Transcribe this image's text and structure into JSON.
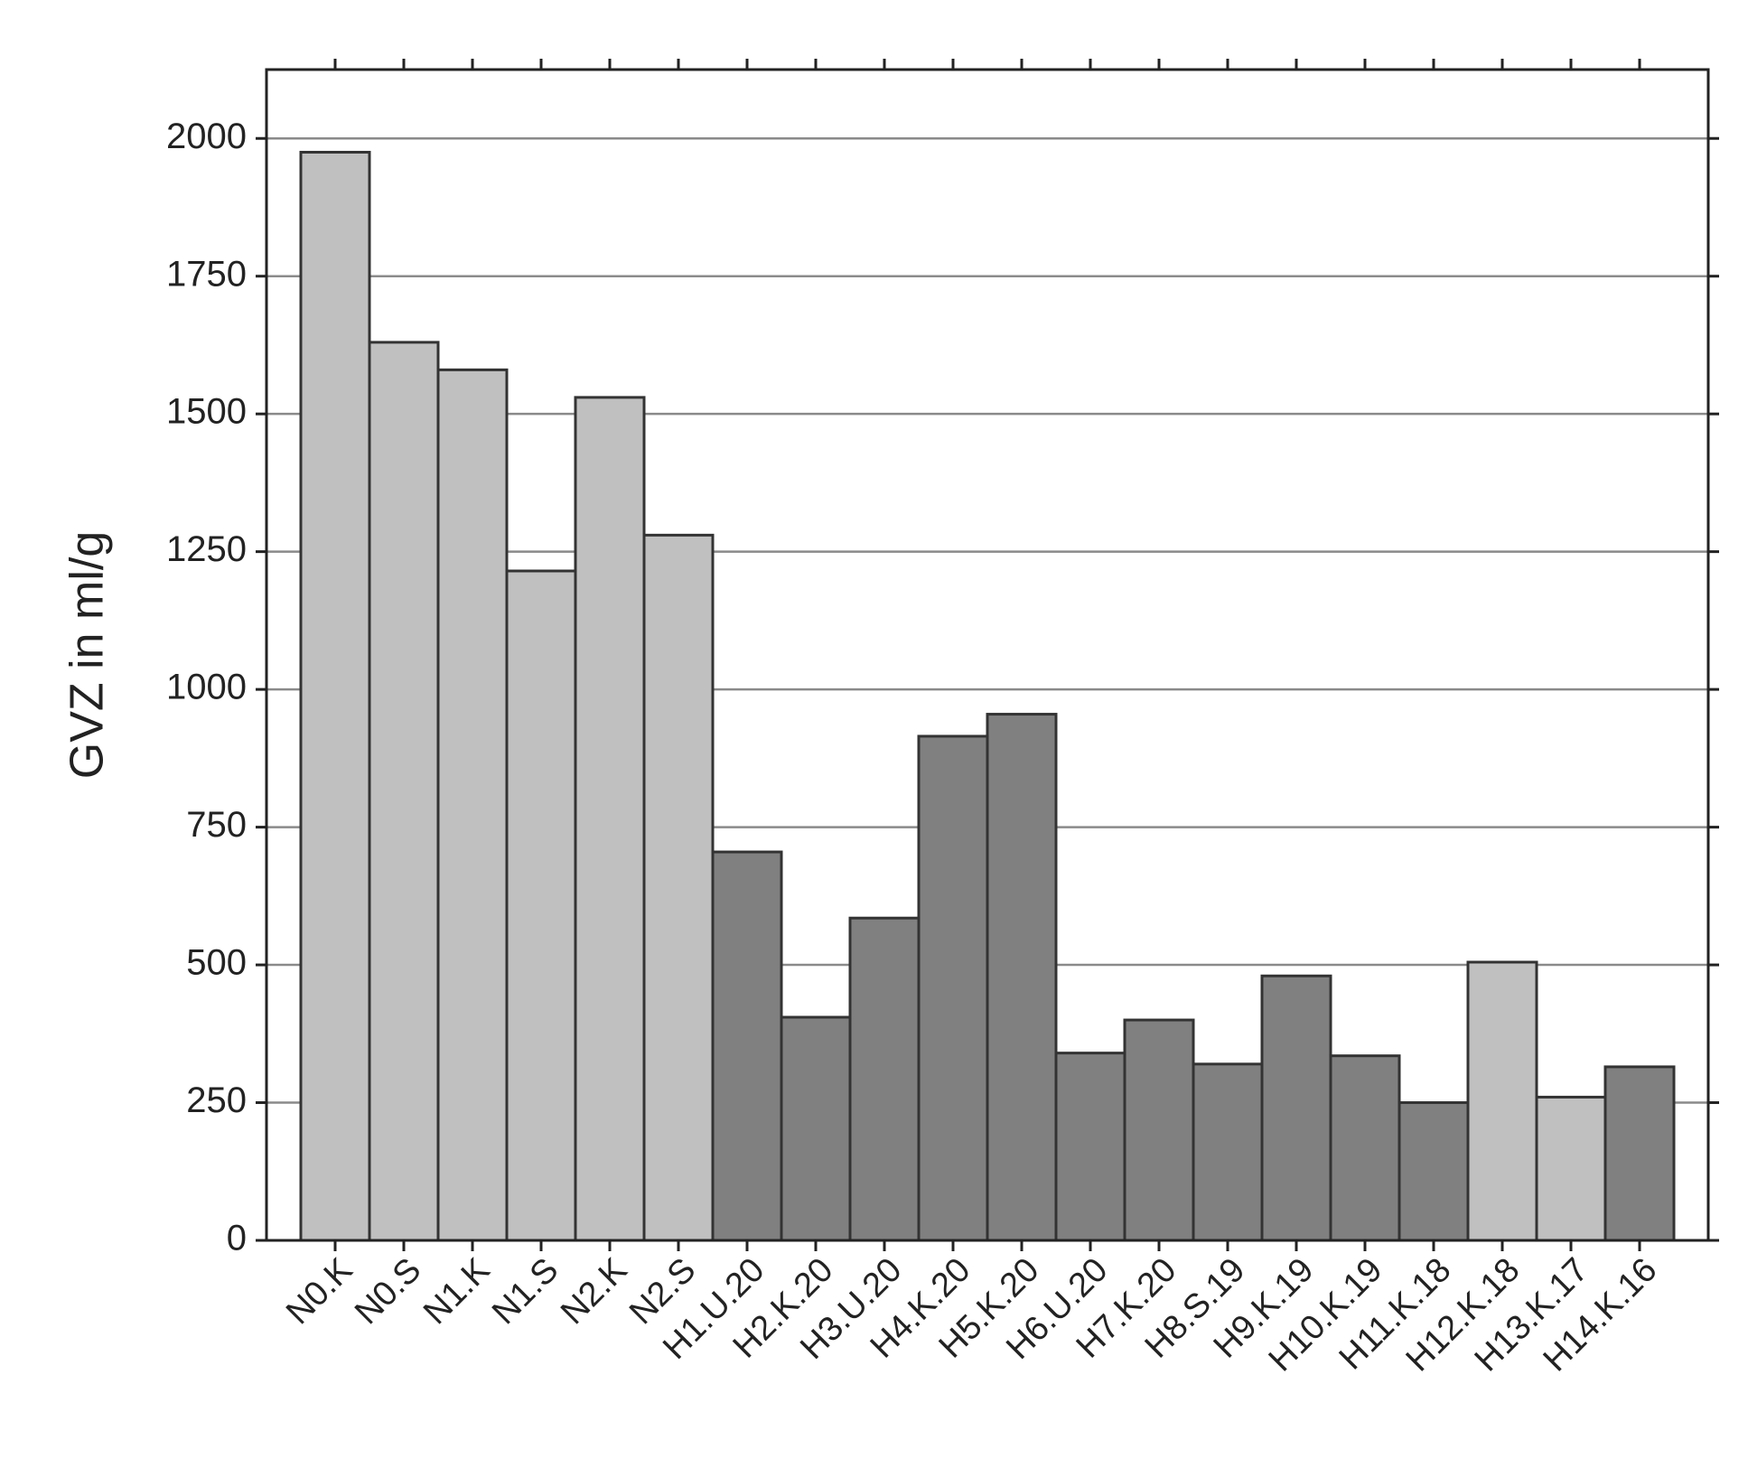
{
  "chart_data": {
    "type": "bar",
    "y_label": "GVZ in ml/g",
    "categories": [
      "N0.K",
      "N0.S",
      "N1.K",
      "N1.S",
      "N2.K",
      "N2.S",
      "H1.U.20",
      "H2.K.20",
      "H3.U.20",
      "H4.K.20",
      "H5.K.20",
      "H6.U.20",
      "H7.K.20",
      "H8.S.19",
      "H9.K.19",
      "H10.K.19",
      "H11.K.18",
      "H12.K.18",
      "H13.K.17",
      "H14.K.16"
    ],
    "values": [
      1975,
      1630,
      1580,
      1215,
      1530,
      1280,
      705,
      405,
      585,
      915,
      955,
      340,
      400,
      320,
      480,
      335,
      250,
      505,
      260,
      315
    ],
    "colors": [
      "#c0c0c0",
      "#c0c0c0",
      "#c0c0c0",
      "#c0c0c0",
      "#c0c0c0",
      "#c0c0c0",
      "#808080",
      "#808080",
      "#808080",
      "#808080",
      "#808080",
      "#808080",
      "#808080",
      "#808080",
      "#808080",
      "#808080",
      "#808080",
      "#c0c0c0",
      "#c0c0c0",
      "#808080"
    ],
    "ylim": [
      0,
      2125
    ],
    "yticks": [
      0,
      250,
      500,
      750,
      1000,
      1250,
      1500,
      1750,
      2000
    ],
    "grid": true
  }
}
